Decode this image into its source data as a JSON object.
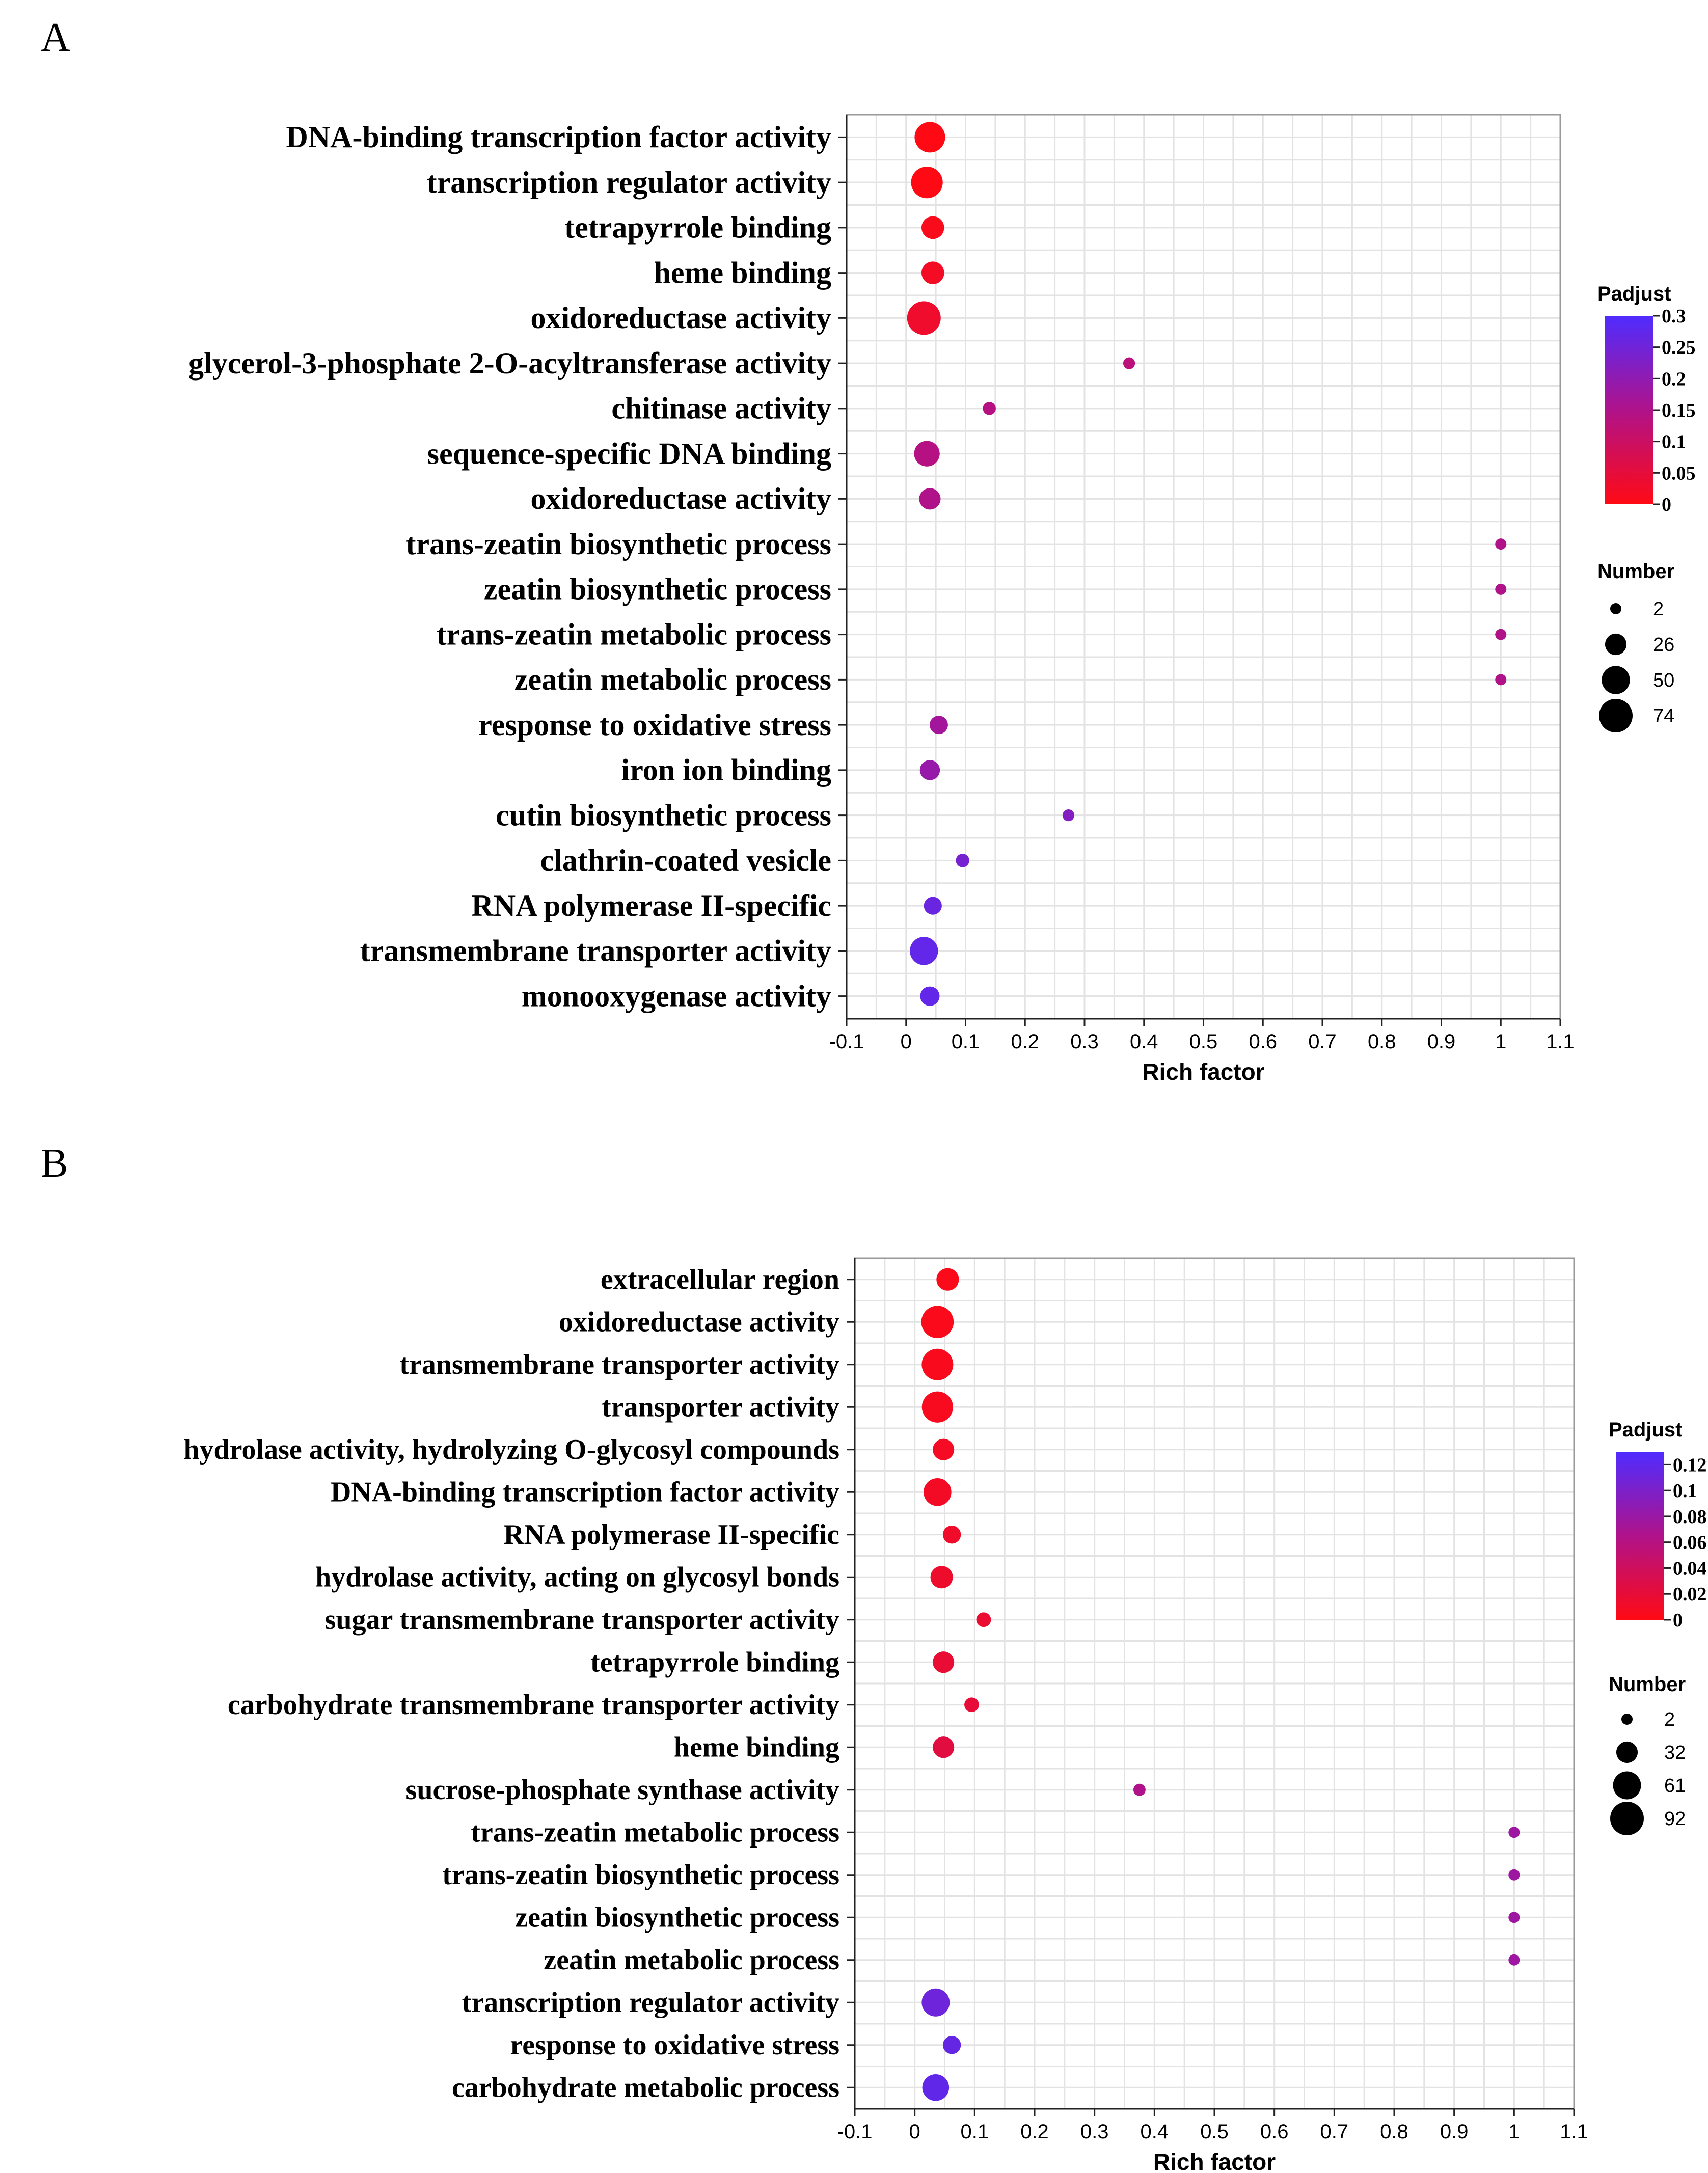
{
  "chart_data": [
    {
      "type": "scatter",
      "panel": "A",
      "xlabel": "Rich factor",
      "xlim": [
        -0.1,
        1.1
      ],
      "xticks": [
        "-0.1",
        "0",
        "0.1",
        "0.2",
        "0.3",
        "0.4",
        "0.5",
        "0.6",
        "0.7",
        "0.8",
        "0.9",
        "1",
        "1.1"
      ],
      "terms": [
        {
          "label": "DNA-binding transcription factor activity",
          "rich_factor": 0.04,
          "padjust": 0.0,
          "number": 60
        },
        {
          "label": "transcription regulator activity",
          "rich_factor": 0.035,
          "padjust": 0.0,
          "number": 65
        },
        {
          "label": "tetrapyrrole binding",
          "rich_factor": 0.045,
          "padjust": 0.01,
          "number": 30
        },
        {
          "label": "heme binding",
          "rich_factor": 0.045,
          "padjust": 0.02,
          "number": 30
        },
        {
          "label": "oxidoreductase activity",
          "rich_factor": 0.03,
          "padjust": 0.03,
          "number": 74
        },
        {
          "label": "glycerol-3-phosphate 2-O-acyltransferase activity",
          "rich_factor": 0.375,
          "padjust": 0.13,
          "number": 3
        },
        {
          "label": "chitinase activity",
          "rich_factor": 0.14,
          "padjust": 0.14,
          "number": 5
        },
        {
          "label": "sequence-specific DNA binding",
          "rich_factor": 0.035,
          "padjust": 0.14,
          "number": 40
        },
        {
          "label": "oxidoreductase activity",
          "rich_factor": 0.04,
          "padjust": 0.15,
          "number": 26
        },
        {
          "label": "trans-zeatin biosynthetic process",
          "rich_factor": 1.0,
          "padjust": 0.15,
          "number": 2
        },
        {
          "label": "zeatin biosynthetic process",
          "rich_factor": 1.0,
          "padjust": 0.15,
          "number": 2
        },
        {
          "label": "trans-zeatin metabolic process",
          "rich_factor": 1.0,
          "padjust": 0.15,
          "number": 2
        },
        {
          "label": "zeatin metabolic process",
          "rich_factor": 1.0,
          "padjust": 0.15,
          "number": 2
        },
        {
          "label": "response to oxidative stress",
          "rich_factor": 0.055,
          "padjust": 0.17,
          "number": 17
        },
        {
          "label": "iron ion binding",
          "rich_factor": 0.04,
          "padjust": 0.19,
          "number": 22
        },
        {
          "label": "cutin biosynthetic process",
          "rich_factor": 0.273,
          "padjust": 0.22,
          "number": 3
        },
        {
          "label": "clathrin-coated vesicle",
          "rich_factor": 0.095,
          "padjust": 0.24,
          "number": 6
        },
        {
          "label": "RNA polymerase II-specific",
          "rich_factor": 0.045,
          "padjust": 0.26,
          "number": 16
        },
        {
          "label": "transmembrane transporter activity",
          "rich_factor": 0.03,
          "padjust": 0.27,
          "number": 50
        },
        {
          "label": "monooxygenase activity",
          "rich_factor": 0.04,
          "padjust": 0.27,
          "number": 20
        }
      ],
      "legend": {
        "color_title": "Padjust",
        "color_range": [
          0,
          0.3
        ],
        "color_ticks": [
          "0.3",
          "0.25",
          "0.2",
          "0.15",
          "0.1",
          "0.05",
          "0"
        ],
        "color_tick_values": [
          0.3,
          0.25,
          0.2,
          0.15,
          0.1,
          0.05,
          0
        ],
        "size_title": "Number",
        "size_values": [
          2,
          26,
          50,
          74
        ],
        "size_labels": [
          "2",
          "26",
          "50",
          "74"
        ]
      }
    },
    {
      "type": "scatter",
      "panel": "B",
      "xlabel": "Rich factor",
      "xlim": [
        -0.1,
        1.1
      ],
      "xticks": [
        "-0.1",
        "0",
        "0.1",
        "0.2",
        "0.3",
        "0.4",
        "0.5",
        "0.6",
        "0.7",
        "0.8",
        "0.9",
        "1",
        "1.1"
      ],
      "terms": [
        {
          "label": "extracellular region",
          "rich_factor": 0.055,
          "padjust": 0.003,
          "number": 36
        },
        {
          "label": "oxidoreductase activity",
          "rich_factor": 0.038,
          "padjust": 0.004,
          "number": 85
        },
        {
          "label": "transmembrane transporter activity",
          "rich_factor": 0.038,
          "padjust": 0.005,
          "number": 80
        },
        {
          "label": "transporter activity",
          "rich_factor": 0.038,
          "padjust": 0.006,
          "number": 78
        },
        {
          "label": "hydrolase activity, hydrolyzing O-glycosyl compounds",
          "rich_factor": 0.048,
          "padjust": 0.008,
          "number": 32
        },
        {
          "label": "DNA-binding transcription factor activity",
          "rich_factor": 0.038,
          "padjust": 0.01,
          "number": 60
        },
        {
          "label": "RNA polymerase II-specific",
          "rich_factor": 0.062,
          "padjust": 0.012,
          "number": 20
        },
        {
          "label": "hydrolase activity, acting on glycosyl bonds",
          "rich_factor": 0.045,
          "padjust": 0.014,
          "number": 36
        },
        {
          "label": "sugar transmembrane transporter activity",
          "rich_factor": 0.115,
          "padjust": 0.016,
          "number": 10
        },
        {
          "label": "tetrapyrrole binding",
          "rich_factor": 0.048,
          "padjust": 0.018,
          "number": 32
        },
        {
          "label": "carbohydrate transmembrane transporter activity",
          "rich_factor": 0.095,
          "padjust": 0.02,
          "number": 10
        },
        {
          "label": "heme binding",
          "rich_factor": 0.048,
          "padjust": 0.025,
          "number": 32
        },
        {
          "label": "sucrose-phosphate synthase activity",
          "rich_factor": 0.375,
          "padjust": 0.065,
          "number": 4
        },
        {
          "label": "trans-zeatin metabolic process",
          "rich_factor": 1.0,
          "padjust": 0.078,
          "number": 2
        },
        {
          "label": "trans-zeatin biosynthetic process",
          "rich_factor": 1.0,
          "padjust": 0.078,
          "number": 2
        },
        {
          "label": "zeatin biosynthetic process",
          "rich_factor": 1.0,
          "padjust": 0.078,
          "number": 2
        },
        {
          "label": "zeatin metabolic process",
          "rich_factor": 1.0,
          "padjust": 0.078,
          "number": 2
        },
        {
          "label": "transcription regulator activity",
          "rich_factor": 0.035,
          "padjust": 0.11,
          "number": 61
        },
        {
          "label": "response to oxidative stress",
          "rich_factor": 0.062,
          "padjust": 0.115,
          "number": 20
        },
        {
          "label": "carbohydrate metabolic process",
          "rich_factor": 0.035,
          "padjust": 0.118,
          "number": 55
        }
      ],
      "legend": {
        "color_title": "Padjust",
        "color_range": [
          0,
          0.13
        ],
        "color_ticks": [
          "0.12",
          "0.1",
          "0.08",
          "0.06",
          "0.04",
          "0.02",
          "0"
        ],
        "color_tick_values": [
          0.12,
          0.1,
          0.08,
          0.06,
          0.04,
          0.02,
          0
        ],
        "size_title": "Number",
        "size_values": [
          2,
          32,
          61,
          92
        ],
        "size_labels": [
          "2",
          "32",
          "61",
          "92"
        ]
      }
    }
  ]
}
